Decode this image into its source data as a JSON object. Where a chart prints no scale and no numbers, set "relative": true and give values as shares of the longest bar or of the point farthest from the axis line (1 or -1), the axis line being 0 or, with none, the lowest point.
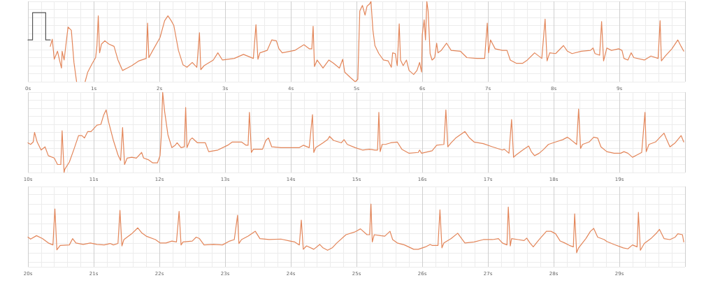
{
  "chart_data": [
    {
      "type": "line",
      "relative": true,
      "grid": true,
      "marker": "none",
      "xlim": [
        0,
        10
      ],
      "xticks": [
        {
          "value": 0,
          "label": "0s"
        },
        {
          "value": 1,
          "label": "1s"
        },
        {
          "value": 2,
          "label": "2s"
        },
        {
          "value": 3,
          "label": "3s"
        },
        {
          "value": 4,
          "label": "4s"
        },
        {
          "value": 5,
          "label": "5s"
        },
        {
          "value": 6,
          "label": "6s"
        },
        {
          "value": 7,
          "label": "7s"
        },
        {
          "value": 8,
          "label": "8s"
        },
        {
          "value": 9,
          "label": "9s"
        }
      ],
      "series": [
        {
          "color": "#555555",
          "x": [
            0,
            0.07,
            0.07,
            0.27,
            0.27,
            0.34
          ],
          "values": [
            0.52,
            0.52,
            0.86,
            0.86,
            0.52,
            0.52
          ]
        },
        {
          "color": "#e3865a",
          "x": [
            0.34,
            0.37,
            0.4,
            0.45,
            0.48,
            0.51,
            0.52,
            0.55,
            0.61,
            0.66,
            0.7,
            0.74,
            0.8,
            0.87,
            0.91,
            0.98,
            1.03,
            1.05,
            1.07,
            1.09,
            1.12,
            1.17,
            1.23,
            1.31,
            1.37,
            1.44,
            1.51,
            1.58,
            1.69,
            1.8,
            1.82,
            1.84,
            1.9,
            2.01,
            2.08,
            2.13,
            2.18,
            2.22,
            2.29,
            2.36,
            2.42,
            2.5,
            2.57,
            2.61,
            2.63,
            2.68,
            2.82,
            2.89,
            2.96,
            3.14,
            3.28,
            3.43,
            3.47,
            3.5,
            3.53,
            3.64,
            3.71,
            3.78,
            3.82,
            3.87,
            4.06,
            4.2,
            4.28,
            4.32,
            4.34,
            4.36,
            4.4,
            4.49,
            4.58,
            4.65,
            4.74,
            4.79,
            4.82,
            4.91,
            4.98,
            5.02,
            5.05,
            5.09,
            5.13,
            5.16,
            5.2,
            5.22,
            5.25,
            5.28,
            5.34,
            5.41,
            5.48,
            5.53,
            5.55,
            5.59,
            5.62,
            5.65,
            5.67,
            5.71,
            5.76,
            5.8,
            5.87,
            5.92,
            5.96,
            5.99,
            6.0,
            6.03,
            6.05,
            6.07,
            6.09,
            6.12,
            6.15,
            6.19,
            6.22,
            6.24,
            6.29,
            6.37,
            6.44,
            6.58,
            6.68,
            6.83,
            6.95,
            6.99,
            7.01,
            7.04,
            7.11,
            7.22,
            7.29,
            7.34,
            7.43,
            7.53,
            7.6,
            7.71,
            7.82,
            7.87,
            7.9,
            7.94,
            8.03,
            8.15,
            8.21,
            8.28,
            8.42,
            8.56,
            8.6,
            8.63,
            8.7,
            8.73,
            8.76,
            8.81,
            8.88,
            8.99,
            9.04,
            9.07,
            9.13,
            9.18,
            9.22,
            9.38,
            9.48,
            9.59,
            9.62,
            9.64,
            9.7,
            9.8,
            9.89,
            9.94,
            9.98
          ],
          "values": [
            0.44,
            0.53,
            0.28,
            0.38,
            0.27,
            0.17,
            0.38,
            0.27,
            0.68,
            0.64,
            0.24,
            0,
            null,
            0,
            0.12,
            0.23,
            0.3,
            0.45,
            0.82,
            0.36,
            0.47,
            0.51,
            0.47,
            0.44,
            0.27,
            0.14,
            0.17,
            0.2,
            0.26,
            0.29,
            0.73,
            0.3,
            0.39,
            0.55,
            0.76,
            0.82,
            0.76,
            0.7,
            0.39,
            0.21,
            0.18,
            0.24,
            0.18,
            0.61,
            0.15,
            0.2,
            0.27,
            0.36,
            0.27,
            0.29,
            0.34,
            0.29,
            0.71,
            0.28,
            0.36,
            0.39,
            0.52,
            0.51,
            0.41,
            0.36,
            0.39,
            0.46,
            0.41,
            0.41,
            0.69,
            0.19,
            0.27,
            0.17,
            0.27,
            0.23,
            0.17,
            0.28,
            0.12,
            0.05,
            0,
            0.03,
            0.88,
            0.95,
            0.83,
            0.94,
            0.97,
            1,
            0.64,
            0.45,
            0.35,
            0.27,
            0.26,
            0.18,
            0.36,
            0.35,
            0.2,
            0.72,
            0.27,
            0.2,
            0.27,
            0.14,
            0.09,
            0.14,
            0.24,
            0.12,
            0.58,
            0.77,
            0.52,
            1,
            0.88,
            0.35,
            0.27,
            0.3,
            0.48,
            0.36,
            0.39,
            0.48,
            0.39,
            0.38,
            0.3,
            0.29,
            0.29,
            0.73,
            0.36,
            0.52,
            0.41,
            0.39,
            0.39,
            0.27,
            0.23,
            0.23,
            0.27,
            0.36,
            0.29,
            0.78,
            0.26,
            0.36,
            0.35,
            0.45,
            0.38,
            0.35,
            0.38,
            0.39,
            0.42,
            0.35,
            0.33,
            0.75,
            0.26,
            0.42,
            0.39,
            0.41,
            0.39,
            0.29,
            0.27,
            0.36,
            0.3,
            0.27,
            0.32,
            0.29,
            0.76,
            0.26,
            0.32,
            0.41,
            0.52,
            0.44,
            0.38
          ]
        }
      ]
    },
    {
      "type": "line",
      "relative": true,
      "grid": true,
      "marker": "none",
      "xlim": [
        10,
        20
      ],
      "xticks": [
        {
          "value": 10,
          "label": "10s"
        },
        {
          "value": 11,
          "label": "11s"
        },
        {
          "value": 12,
          "label": "12s"
        },
        {
          "value": 13,
          "label": "13s"
        },
        {
          "value": 14,
          "label": "14s"
        },
        {
          "value": 15,
          "label": "15s"
        },
        {
          "value": 16,
          "label": "16s"
        },
        {
          "value": 17,
          "label": "17s"
        },
        {
          "value": 18,
          "label": "18s"
        },
        {
          "value": 19,
          "label": "19s"
        }
      ],
      "series": [
        {
          "color": "#e3865a",
          "x": [
            10.0,
            10.04,
            10.08,
            10.1,
            10.14,
            10.2,
            10.26,
            10.31,
            10.4,
            10.45,
            10.5,
            10.52,
            10.55,
            10.56,
            10.63,
            10.7,
            10.77,
            10.82,
            10.86,
            10.91,
            10.96,
            11.05,
            11.11,
            11.15,
            11.19,
            11.23,
            11.3,
            11.37,
            11.41,
            11.44,
            11.47,
            11.51,
            11.58,
            11.65,
            11.73,
            11.76,
            11.83,
            11.9,
            11.97,
            12.01,
            12.03,
            12.05,
            12.08,
            12.13,
            12.19,
            12.24,
            12.27,
            12.33,
            12.38,
            12.4,
            12.42,
            12.47,
            12.5,
            12.58,
            12.65,
            12.7,
            12.75,
            12.89,
            13.04,
            13.11,
            13.18,
            13.25,
            13.32,
            13.35,
            13.37,
            13.4,
            13.43,
            13.57,
            13.62,
            13.66,
            13.71,
            13.85,
            13.99,
            14.13,
            14.19,
            14.28,
            14.33,
            14.35,
            14.38,
            14.49,
            14.56,
            14.59,
            14.65,
            14.77,
            14.81,
            14.86,
            14.98,
            15.09,
            15.2,
            15.28,
            15.32,
            15.34,
            15.36,
            15.39,
            15.44,
            15.52,
            15.62,
            15.69,
            15.8,
            15.94,
            15.96,
            15.99,
            16.15,
            16.22,
            16.33,
            16.36,
            16.39,
            16.44,
            16.51,
            16.65,
            16.72,
            16.79,
            16.93,
            17.07,
            17.22,
            17.25,
            17.32,
            17.36,
            17.39,
            17.43,
            17.53,
            17.62,
            17.66,
            17.71,
            17.78,
            17.85,
            17.92,
            18.03,
            18.14,
            18.21,
            18.26,
            18.35,
            18.38,
            18.41,
            18.44,
            18.54,
            18.61,
            18.67,
            18.72,
            18.81,
            18.92,
            19.02,
            19.07,
            19.13,
            19.2,
            19.27,
            19.34,
            19.39,
            19.41,
            19.45,
            19.55,
            19.62,
            19.68,
            19.71,
            19.77,
            19.85,
            19.94,
            19.98
          ],
          "values": [
            0.37,
            0.35,
            0.38,
            0.5,
            0.38,
            0.28,
            0.32,
            0.21,
            0.18,
            0.1,
            0.1,
            0.52,
            0,
            0.04,
            0.13,
            0.29,
            0.46,
            0.46,
            0.43,
            0.51,
            0.51,
            0.59,
            0.6,
            0.71,
            0.78,
            0.62,
            0.4,
            0.22,
            0.15,
            0.56,
            0.1,
            0.18,
            0.19,
            0.18,
            0.25,
            0.18,
            0.16,
            0.12,
            0.12,
            0.21,
            0.47,
            1,
            0.76,
            0.47,
            0.31,
            0.34,
            0.37,
            0.31,
            0.32,
            0.81,
            0.31,
            0.41,
            0.43,
            0.37,
            0.37,
            0.37,
            0.26,
            0.28,
            0.34,
            0.38,
            0.38,
            0.38,
            0.34,
            0.34,
            0.75,
            0.25,
            0.29,
            0.29,
            0.4,
            0.43,
            0.32,
            0.31,
            0.31,
            0.31,
            0.34,
            0.31,
            0.72,
            0.25,
            0.31,
            0.37,
            0.41,
            0.45,
            0.4,
            0.37,
            0.41,
            0.35,
            0.31,
            0.28,
            0.29,
            0.28,
            0.28,
            0.75,
            0.26,
            0.35,
            0.35,
            0.37,
            0.38,
            0.29,
            0.24,
            0.25,
            0.28,
            0.24,
            0.27,
            0.34,
            0.35,
            0.78,
            0.32,
            0.37,
            0.43,
            0.51,
            0.43,
            0.38,
            0.36,
            0.32,
            0.28,
            0.29,
            0.24,
            0.66,
            0.19,
            0.22,
            0.28,
            0.33,
            0.26,
            0.21,
            0.24,
            0.29,
            0.35,
            0.38,
            0.41,
            0.44,
            0.41,
            0.35,
            0.79,
            0.3,
            0.35,
            0.38,
            0.44,
            0.43,
            0.32,
            0.26,
            0.24,
            0.24,
            0.26,
            0.24,
            0.19,
            0.22,
            0.25,
            0.75,
            0.26,
            0.35,
            0.38,
            0.44,
            0.49,
            0.43,
            0.32,
            0.37,
            0.46,
            0.38
          ]
        }
      ]
    },
    {
      "type": "line",
      "relative": true,
      "grid": true,
      "marker": "none",
      "xlim": [
        20,
        30
      ],
      "xticks": [
        {
          "value": 20,
          "label": "20s"
        },
        {
          "value": 21,
          "label": "21s"
        },
        {
          "value": 22,
          "label": "22s"
        },
        {
          "value": 23,
          "label": "23s"
        },
        {
          "value": 24,
          "label": "24s"
        },
        {
          "value": 25,
          "label": "25s"
        },
        {
          "value": 26,
          "label": "26s"
        },
        {
          "value": 27,
          "label": "27s"
        },
        {
          "value": 28,
          "label": "28s"
        },
        {
          "value": 29,
          "label": "29s"
        }
      ],
      "series": [
        {
          "color": "#e3865a",
          "x": [
            20.0,
            20.04,
            20.13,
            20.22,
            20.31,
            20.38,
            20.41,
            20.44,
            20.49,
            20.63,
            20.68,
            20.73,
            20.84,
            20.95,
            21.05,
            21.16,
            21.25,
            21.3,
            21.37,
            21.4,
            21.43,
            21.46,
            21.58,
            21.67,
            21.73,
            21.8,
            21.94,
            22.01,
            22.1,
            22.19,
            22.26,
            22.3,
            22.33,
            22.36,
            22.5,
            22.56,
            22.61,
            22.68,
            22.82,
            22.96,
            23.07,
            23.14,
            23.19,
            23.21,
            23.25,
            23.35,
            23.46,
            23.53,
            23.67,
            23.85,
            23.99,
            24.06,
            24.13,
            24.16,
            24.19,
            24.24,
            24.35,
            24.44,
            24.49,
            24.56,
            24.63,
            24.7,
            24.84,
            24.98,
            25.06,
            25.16,
            25.2,
            25.22,
            25.24,
            25.27,
            25.37,
            25.43,
            25.51,
            25.55,
            25.62,
            25.73,
            25.87,
            25.94,
            26.05,
            26.12,
            26.15,
            26.24,
            26.27,
            26.3,
            26.33,
            26.44,
            26.54,
            26.6,
            26.65,
            26.79,
            26.93,
            27.07,
            27.16,
            27.22,
            27.29,
            27.31,
            27.34,
            27.36,
            27.46,
            27.55,
            27.59,
            27.64,
            27.69,
            27.78,
            27.89,
            27.96,
            28.03,
            28.1,
            28.17,
            28.24,
            28.3,
            28.32,
            28.35,
            28.38,
            28.49,
            28.56,
            28.61,
            28.67,
            28.77,
            28.81,
            28.92,
            29.06,
            29.13,
            29.2,
            29.27,
            29.29,
            29.32,
            29.38,
            29.48,
            29.57,
            29.61,
            29.68,
            29.77,
            29.85,
            29.89,
            29.96,
            29.98
          ],
          "values": [
            0.32,
            0.28,
            0.35,
            0.29,
            0.2,
            0.16,
            0.9,
            0.06,
            0.15,
            0.16,
            0.29,
            0.2,
            0.17,
            0.2,
            0.17,
            0.16,
            0.19,
            0.16,
            0.19,
            0.87,
            0.14,
            0.27,
            0.39,
            0.51,
            0.41,
            0.34,
            0.27,
            0.2,
            0.2,
            0.24,
            0.22,
            0.85,
            0.16,
            0.22,
            0.24,
            0.32,
            0.29,
            0.16,
            0.17,
            0.16,
            0.24,
            0.27,
            0.77,
            0.19,
            0.27,
            0.34,
            0.44,
            0.29,
            0.27,
            0.28,
            0.24,
            0.22,
            0.16,
            0.67,
            0.07,
            0.14,
            0.07,
            0.17,
            0.1,
            0.05,
            0.1,
            0.2,
            0.37,
            0.43,
            0.49,
            0.37,
            0.37,
            1,
            0.22,
            0.37,
            0.35,
            0.34,
            0.44,
            0.27,
            0.2,
            0.16,
            0.07,
            0.07,
            0.12,
            0.17,
            0.15,
            0.15,
            0.88,
            0.1,
            0.2,
            0.29,
            0.4,
            0.29,
            0.2,
            0.22,
            0.27,
            0.27,
            0.29,
            0.2,
            0.16,
            0.94,
            0.14,
            0.29,
            0.27,
            0.25,
            0.3,
            0.2,
            0.12,
            0.27,
            0.44,
            0.44,
            0.39,
            0.24,
            0.2,
            0.15,
            0.12,
            0.8,
            0,
            0.1,
            0.29,
            0.44,
            0.5,
            0.32,
            0.27,
            0.23,
            0.17,
            0.1,
            0.08,
            0.16,
            0.12,
            0.83,
            0.05,
            0.19,
            0.29,
            0.41,
            0.48,
            0.29,
            0.27,
            0.32,
            0.39,
            0.37,
            0.22
          ]
        }
      ]
    }
  ]
}
